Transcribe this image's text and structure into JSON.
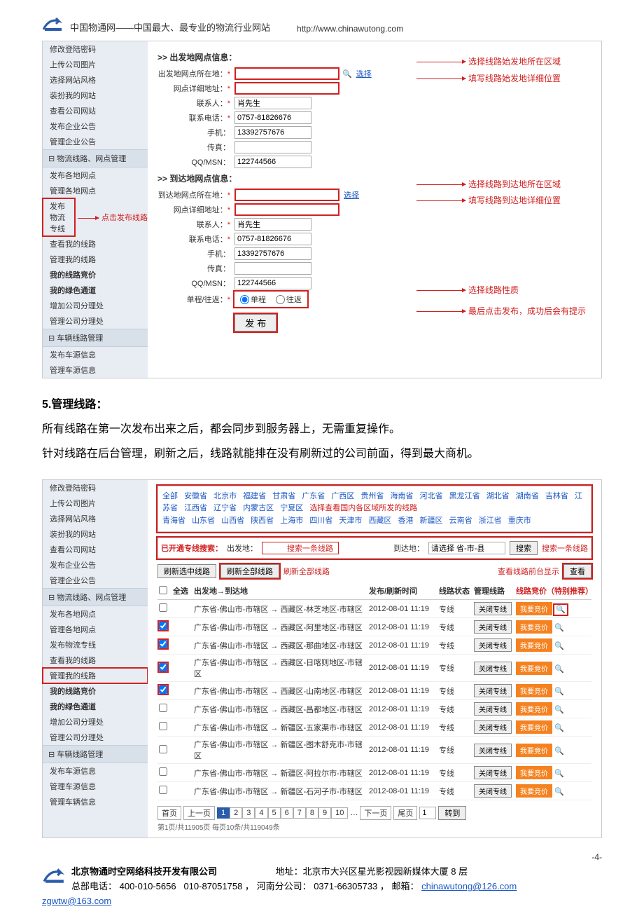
{
  "header": {
    "title": "中国物通网——中国最大、最专业的物流行业网站",
    "url": "http://www.chinawutong.com"
  },
  "sidebar1": {
    "items_top": [
      "修改登陆密码",
      "上传公司图片",
      "选择网站风格",
      "装扮我的网站",
      "查看公司网站",
      "发布企业公告",
      "管理企业公告"
    ],
    "section1": "⊟ 物流线路、网点管理",
    "items_mid": [
      {
        "t": "发布各地网点"
      },
      {
        "t": "管理各地网点"
      },
      {
        "t": "发布物流专线",
        "boxed": true,
        "ann": "点击发布线路"
      },
      {
        "t": "查看我的线路"
      },
      {
        "t": "管理我的线路"
      },
      {
        "t": "我的线路竞价",
        "bold": true
      },
      {
        "t": "我的绿色通道",
        "bold": true
      },
      {
        "t": "增加公司分理处"
      },
      {
        "t": "管理公司分理处"
      }
    ],
    "section2": "⊟ 车辆线路管理",
    "items_bot": [
      "发布车源信息",
      "管理车源信息"
    ]
  },
  "form1": {
    "sec1": ">> 出发地网点信息：",
    "sec2": ">> 到达地网点信息：",
    "labels": {
      "loc": "出发地网点所在地：",
      "addr": "网点详细地址：",
      "contact": "联系人：",
      "tel": "联系电话：",
      "mobile": "手机：",
      "fax": "传真：",
      "qq": "QQ/MSN：",
      "loc2": "到达地网点所在地：",
      "trip": "单程/往返："
    },
    "star": "*",
    "select": "选择",
    "contact_val": "肖先生",
    "tel_val": "0757-81826676",
    "mobile_val": "13392757676",
    "qq_val": "122744566",
    "oneway": "单程",
    "round": "往返",
    "publish": "发 布"
  },
  "ann1": {
    "a1": "选择线路始发地所在区域",
    "a2": "填写线路始发地详细位置",
    "a3": "选择线路到达地所在区域",
    "a4": "填写线路到达地详细位置",
    "a5": "选择线路性质",
    "a6": "最后点击发布，成功后会有提示"
  },
  "body": {
    "h5": "5.管理线路：",
    "p1": "所有线路在第一次发布出来之后，都会同步到服务器上，无需重复操作。",
    "p2": "针对线路在后台管理，刷新之后，线路就能排在没有刷新过的公司前面，得到最大商机。"
  },
  "sidebar2": {
    "items_top": [
      "修改登陆密码",
      "上传公司图片",
      "选择网站风格",
      "装扮我的网站",
      "查看公司网站",
      "发布企业公告",
      "管理企业公告"
    ],
    "section1": "⊟ 物流线路、网点管理",
    "items_mid": [
      {
        "t": "发布各地网点"
      },
      {
        "t": "管理各地网点"
      },
      {
        "t": "发布物流专线"
      },
      {
        "t": "查看我的线路"
      },
      {
        "t": "管理我的线路",
        "boxed": true
      },
      {
        "t": "我的线路竞价",
        "bold": true
      },
      {
        "t": "我的绿色通道",
        "bold": true
      },
      {
        "t": "增加公司分理处"
      },
      {
        "t": "管理公司分理处"
      }
    ],
    "section2": "⊟ 车辆线路管理",
    "items_bot": [
      "发布车源信息",
      "管理车源信息",
      "管理车辆信息"
    ]
  },
  "s2": {
    "regions_pre": "全部 安徽省 北京市 福建省 甘肃省 广东省 广西区 贵州省 海南省 河北省 黑龙江省 湖北省 湖南省 吉林省 江苏省 江西省 辽宁省 内蒙古区 宁夏区",
    "regions_ann": "选择查看国内各区域所发的线路",
    "regions_post": "青海省 山东省 山西省 陕西省 上海市 四川省 天津市 西藏区 香港 新疆区 云南省 浙江省 重庆市",
    "search_lbl": "已开通专线搜索：",
    "start_lbl": "出发地：",
    "start_ann": "搜索一条线路",
    "end_lbl": "到达地：",
    "end_ph": "请选择 省-市-县",
    "search_btn": "搜索",
    "search_ann": "搜索一条线路",
    "refresh_sel": "刷新选中线路",
    "refresh_all": "刷新全部线路",
    "refresh_ann": "刷新全部线路",
    "view_ann": "查看线路前台显示",
    "view_btn": "查看",
    "th_all": "全选",
    "th1": "出发地→到达地",
    "th2": "发布/刷新时间",
    "th3": "线路状态",
    "th4": "管理线路",
    "th5": "线路竞价（特别推荐）",
    "routes": [
      {
        "c": false,
        "r": "广东省-佛山市-市辖区 → 西藏区-林芝地区-市辖区",
        "d": "2012-08-01 11:19",
        "s": "专线"
      },
      {
        "c": true,
        "red": true,
        "r": "广东省-佛山市-市辖区 → 西藏区-阿里地区-市辖区",
        "d": "2012-08-01 11:19",
        "s": "专线"
      },
      {
        "c": true,
        "red": true,
        "r": "广东省-佛山市-市辖区 → 西藏区-那曲地区-市辖区",
        "d": "2012-08-01 11:19",
        "s": "专线"
      },
      {
        "c": true,
        "red": true,
        "r": "广东省-佛山市-市辖区 → 西藏区-日喀则地区-市辖区",
        "d": "2012-08-01 11:19",
        "s": "专线"
      },
      {
        "c": true,
        "red": true,
        "r": "广东省-佛山市-市辖区 → 西藏区-山南地区-市辖区",
        "d": "2012-08-01 11:19",
        "s": "专线"
      },
      {
        "c": false,
        "r": "广东省-佛山市-市辖区 → 西藏区-昌都地区-市辖区",
        "d": "2012-08-01 11:19",
        "s": "专线"
      },
      {
        "c": false,
        "r": "广东省-佛山市-市辖区 → 新疆区-五家渠市-市辖区",
        "d": "2012-08-01 11:19",
        "s": "专线"
      },
      {
        "c": false,
        "r": "广东省-佛山市-市辖区 → 新疆区-图木舒克市-市辖区",
        "d": "2012-08-01 11:19",
        "s": "专线"
      },
      {
        "c": false,
        "r": "广东省-佛山市-市辖区 → 新疆区-阿拉尔市-市辖区",
        "d": "2012-08-01 11:19",
        "s": "专线"
      },
      {
        "c": false,
        "r": "广东省-佛山市-市辖区 → 新疆区-石河子市-市辖区",
        "d": "2012-08-01 11:19",
        "s": "专线"
      }
    ],
    "close_btn": "关闭专线",
    "bid_btn": "我要竞价",
    "pager": {
      "first": "首页",
      "prev": "上一页",
      "pages": [
        "1",
        "2",
        "3",
        "4",
        "5",
        "6",
        "7",
        "8",
        "9",
        "10"
      ],
      "more": "…",
      "next": "下一页",
      "last": "尾页",
      "go": "1",
      "goto": "转到",
      "info": "第1页/共11905页 每页10条/共119049条"
    }
  },
  "pagenum": "-4-",
  "footer": {
    "company": "北京物通时空网络科技开发有限公司",
    "addr_lbl": "地址：",
    "addr": "北京市大兴区星光影视园新媒体大厦 8 层",
    "tel_lbl": "总部电话：",
    "tel1": "400-010-5656",
    "tel2": "010-87051758 ，",
    "branch_lbl": "河南分公司：",
    "branch_tel": "0371-66305733 ，",
    "mail_lbl": "邮箱：",
    "mail1": "chinawutong@126.com",
    "mail2": "zgwtw@163.com"
  }
}
